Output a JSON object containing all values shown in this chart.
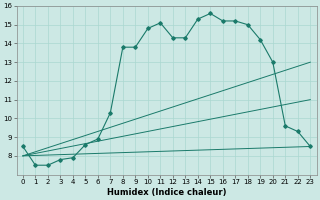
{
  "xlabel": "Humidex (Indice chaleur)",
  "bg_color": "#cce8e4",
  "line_color": "#1a7a6a",
  "xlim": [
    -0.5,
    23.5
  ],
  "ylim": [
    7,
    16
  ],
  "xticks": [
    0,
    1,
    2,
    3,
    4,
    5,
    6,
    7,
    8,
    9,
    10,
    11,
    12,
    13,
    14,
    15,
    16,
    17,
    18,
    19,
    20,
    21,
    22,
    23
  ],
  "yticks": [
    8,
    9,
    10,
    11,
    12,
    13,
    14,
    15,
    16
  ],
  "curve1_x": [
    0,
    1,
    2,
    3,
    4,
    5,
    6,
    7,
    8,
    9,
    10,
    11,
    12,
    13,
    14,
    15,
    16,
    17,
    18,
    19,
    20,
    21,
    22,
    23
  ],
  "curve1_y": [
    8.5,
    7.5,
    7.5,
    7.8,
    7.9,
    8.6,
    8.9,
    10.3,
    13.8,
    13.8,
    14.8,
    15.1,
    14.3,
    14.3,
    15.3,
    15.6,
    15.2,
    15.2,
    15.0,
    14.2,
    13.0,
    9.6,
    9.3,
    8.5
  ],
  "fan_lines": [
    {
      "x": [
        0,
        23
      ],
      "y": [
        8.0,
        8.5
      ]
    },
    {
      "x": [
        0,
        23
      ],
      "y": [
        8.0,
        11.0
      ]
    },
    {
      "x": [
        0,
        23
      ],
      "y": [
        8.0,
        13.0
      ]
    }
  ],
  "grid_color": "#aad8d0",
  "tick_fontsize": 5.0,
  "xlabel_fontsize": 6.0
}
